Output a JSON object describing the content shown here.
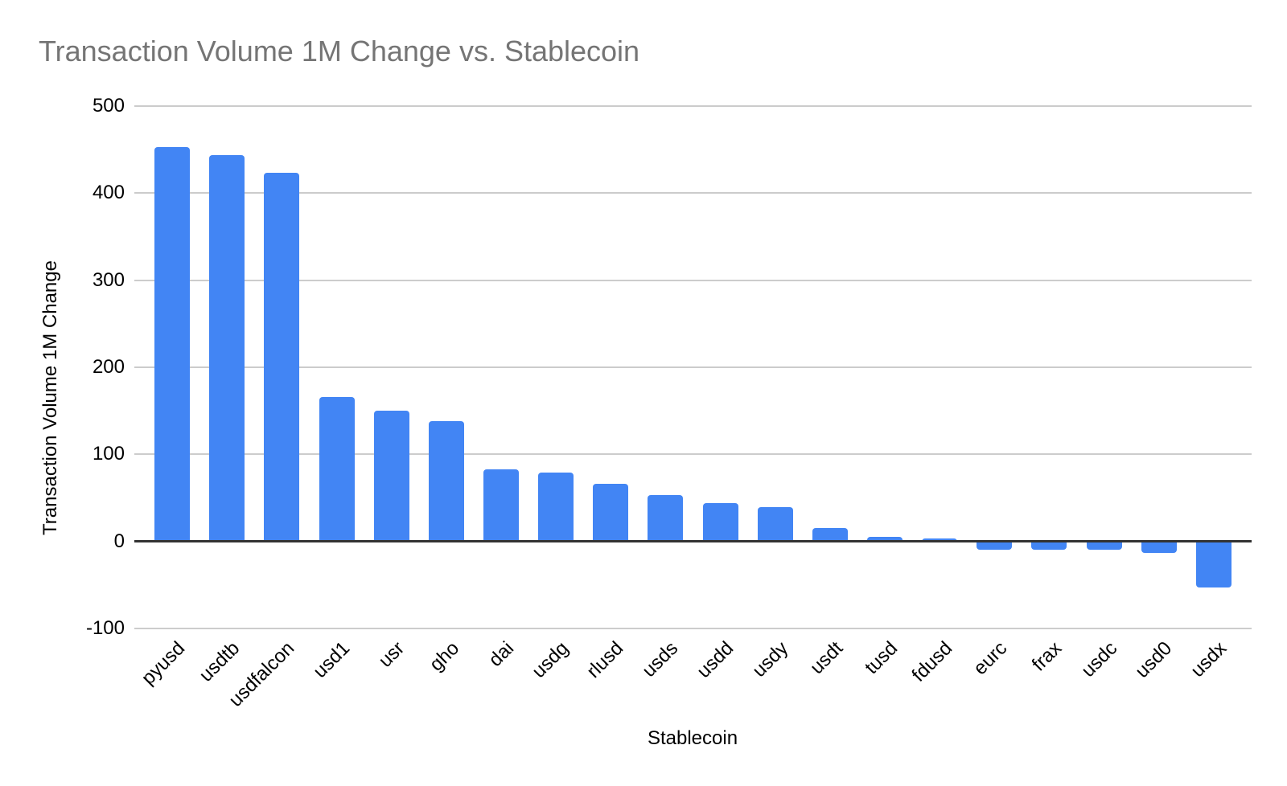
{
  "chart_data": {
    "type": "bar",
    "title": "Transaction Volume 1M Change vs. Stablecoin",
    "xlabel": "Stablecoin",
    "ylabel": "Transaction Volume 1M Change",
    "categories": [
      "pyusd",
      "usdtb",
      "usdfalcon",
      "usd1",
      "usr",
      "gho",
      "dai",
      "usdg",
      "rlusd",
      "usds",
      "usdd",
      "usdy",
      "usdt",
      "tusd",
      "fdusd",
      "eurc",
      "frax",
      "usdc",
      "usd0",
      "usdx"
    ],
    "values": [
      453,
      444,
      423,
      166,
      150,
      138,
      83,
      79,
      66,
      53,
      44,
      39,
      15,
      5,
      3,
      -10,
      -10,
      -10,
      -13,
      -53
    ],
    "ylim": [
      -100,
      500
    ],
    "yticks": [
      -100,
      0,
      100,
      200,
      300,
      400,
      500
    ],
    "grid": true,
    "legend": false,
    "bar_color": "#4285F4",
    "title_color": "#757575",
    "gridline_color": "#cccccc",
    "zero_line_color": "#333333",
    "text_color": "#000000"
  }
}
